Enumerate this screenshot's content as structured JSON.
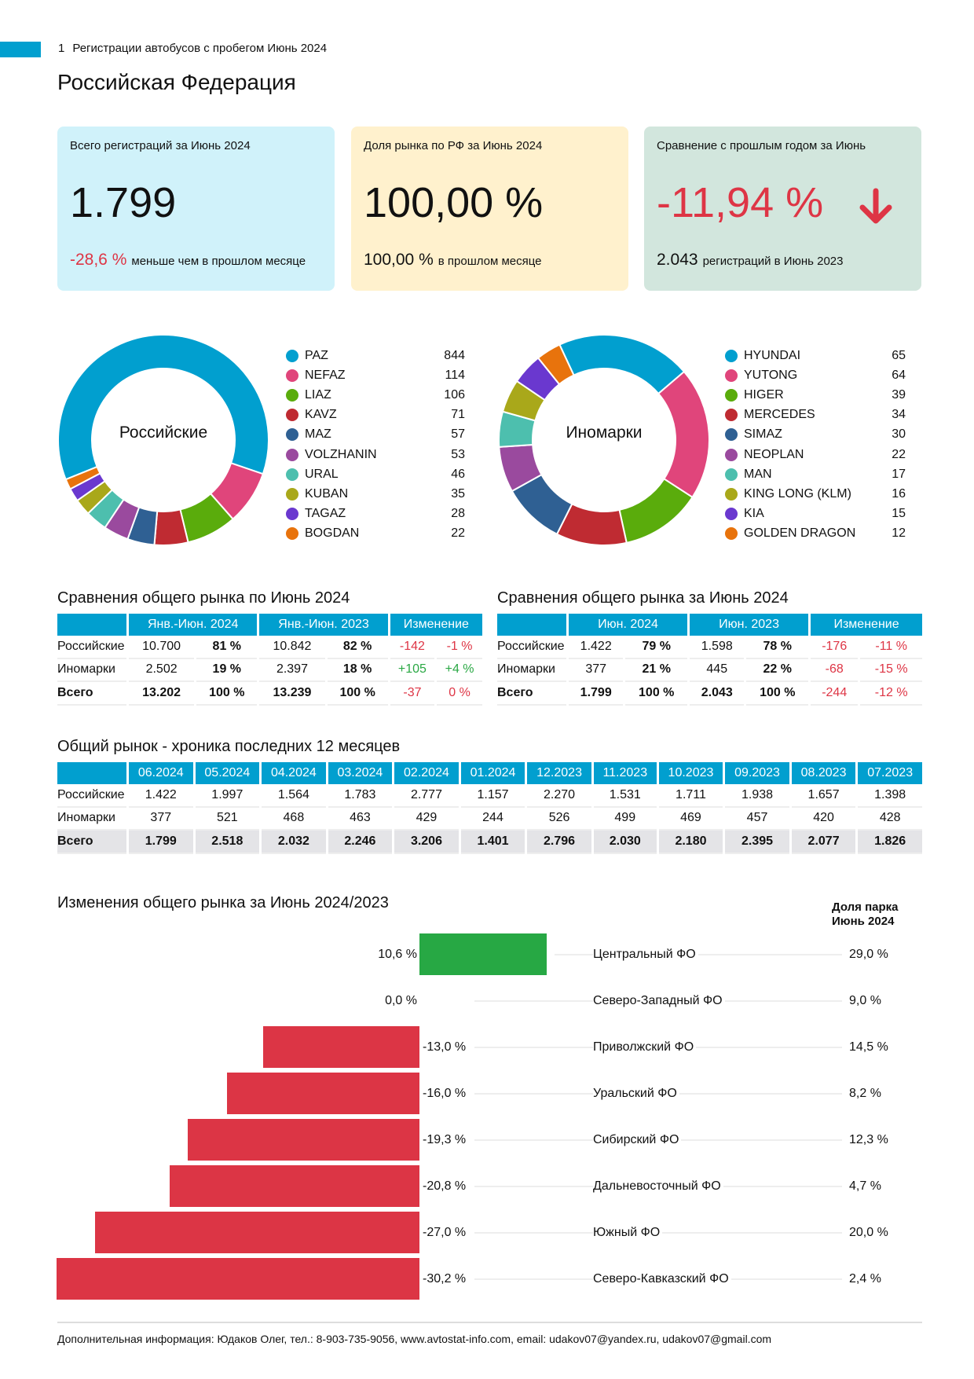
{
  "header": {
    "page_number": "1",
    "report_title": "Регистрации автобусов с пробегом Июнь 2024",
    "region": "Российская Федерация"
  },
  "cards": [
    {
      "label": "Всего регистраций за Июнь 2024",
      "value": "1.799",
      "sub_value": "-28,6 %",
      "sub_text": "меньше чем в прошлом месяце",
      "bg": "#d0f2fa"
    },
    {
      "label": "Доля рынка по РФ за Июнь 2024",
      "value": "100,00 %",
      "sub_value": "100,00 %",
      "sub_text": "в прошлом месяце",
      "bg": "#fff1cd"
    },
    {
      "label": "Сравнение с прошлым годом за Июнь",
      "value": "-11,94 %",
      "sub_value": "2.043",
      "sub_text": "регистраций в Июнь 2023",
      "bg": "#d2e6dd",
      "icon": "arrow-down-icon"
    }
  ],
  "chart_data": [
    {
      "type": "pie",
      "title": "Российские",
      "labels": [
        "PAZ",
        "NEFAZ",
        "LIAZ",
        "KAVZ",
        "MAZ",
        "VOLZHANIN",
        "URAL",
        "KUBAN",
        "TAGAZ",
        "BOGDAN"
      ],
      "values": [
        844,
        114,
        106,
        71,
        57,
        53,
        46,
        35,
        28,
        22
      ],
      "colors": [
        "#019fcf",
        "#e0457b",
        "#5aac0c",
        "#bf2b32",
        "#2f6093",
        "#9a4a9e",
        "#4dbfae",
        "#a9a81a",
        "#6a38cf",
        "#e8730c"
      ]
    },
    {
      "type": "pie",
      "title": "Иномарки",
      "labels": [
        "HYUNDAI",
        "YUTONG",
        "HIGER",
        "MERCEDES",
        "SIMAZ",
        "NEOPLAN",
        "MAN",
        "KING LONG (KLM)",
        "KIA",
        "GOLDEN DRAGON"
      ],
      "values": [
        65,
        64,
        39,
        34,
        30,
        22,
        17,
        16,
        15,
        12
      ],
      "colors": [
        "#019fcf",
        "#e0457b",
        "#5aac0c",
        "#bf2b32",
        "#2f6093",
        "#9a4a9e",
        "#4dbfae",
        "#a9a81a",
        "#6a38cf",
        "#e8730c"
      ]
    },
    {
      "type": "bar",
      "title": "Изменения общего рынка за Июнь 2024/2023",
      "share_header": "Доля парка Июнь 2024",
      "categories": [
        "Центральный ФО",
        "Северо-Западный ФО",
        "Приволжский ФО",
        "Уральский ФО",
        "Сибирский ФО",
        "Дальневосточный ФО",
        "Южный ФО",
        "Северо-Кавказский ФО"
      ],
      "values": [
        10.6,
        0.0,
        -13.0,
        -16.0,
        -19.3,
        -20.8,
        -27.0,
        -30.2
      ],
      "value_labels": [
        "10,6 %",
        "0,0 %",
        "-13,0 %",
        "-16,0 %",
        "-19,3 %",
        "-20,8 %",
        "-27,0 %",
        "-30,2 %"
      ],
      "shares": [
        "29,0 %",
        "9,0 %",
        "14,5 %",
        "8,2 %",
        "12,3 %",
        "4,7 %",
        "20,0 %",
        "2,4 %"
      ],
      "positive_color": "#27a844",
      "negative_color": "#dc3545"
    }
  ],
  "table_ytd": {
    "title": "Сравнения общего рынка по Июнь 2024",
    "headers": [
      "Янв.-Июн. 2024",
      "Янв.-Июн. 2023",
      "Изменение"
    ],
    "rows": [
      [
        "Российские",
        "10.700",
        "81 %",
        "10.842",
        "82 %",
        "-142",
        "-1 %"
      ],
      [
        "Иномарки",
        "2.502",
        "19 %",
        "2.397",
        "18 %",
        "+105",
        "+4 %"
      ],
      [
        "Всего",
        "13.202",
        "100 %",
        "13.239",
        "100 %",
        "-37",
        "0 %"
      ]
    ]
  },
  "table_month": {
    "title": "Сравнения общего рынка за Июнь 2024",
    "headers": [
      "Июн. 2024",
      "Июн. 2023",
      "Изменение"
    ],
    "rows": [
      [
        "Российские",
        "1.422",
        "79 %",
        "1.598",
        "78 %",
        "-176",
        "-11 %"
      ],
      [
        "Иномарки",
        "377",
        "21 %",
        "445",
        "22 %",
        "-68",
        "-15 %"
      ],
      [
        "Всего",
        "1.799",
        "100 %",
        "2.043",
        "100 %",
        "-244",
        "-12 %"
      ]
    ]
  },
  "table_history": {
    "title": "Общий рынок - хроника последних 12 месяцев",
    "headers": [
      "06.2024",
      "05.2024",
      "04.2024",
      "03.2024",
      "02.2024",
      "01.2024",
      "12.2023",
      "11.2023",
      "10.2023",
      "09.2023",
      "08.2023",
      "07.2023"
    ],
    "rows": [
      [
        "Российские",
        "1.422",
        "1.997",
        "1.564",
        "1.783",
        "2.777",
        "1.157",
        "2.270",
        "1.531",
        "1.711",
        "1.938",
        "1.657",
        "1.398"
      ],
      [
        "Иномарки",
        "377",
        "521",
        "468",
        "463",
        "429",
        "244",
        "526",
        "499",
        "469",
        "457",
        "420",
        "428"
      ],
      [
        "Всего",
        "1.799",
        "2.518",
        "2.032",
        "2.246",
        "3.206",
        "1.401",
        "2.796",
        "2.030",
        "2.180",
        "2.395",
        "2.077",
        "1.826"
      ]
    ]
  },
  "footer": "Дополнительная информация: Юдаков Олег, тел.: 8-903-735-9056, www.avtostat-info.com, email: udakov07@yandex.ru, udakov07@gmail.com"
}
